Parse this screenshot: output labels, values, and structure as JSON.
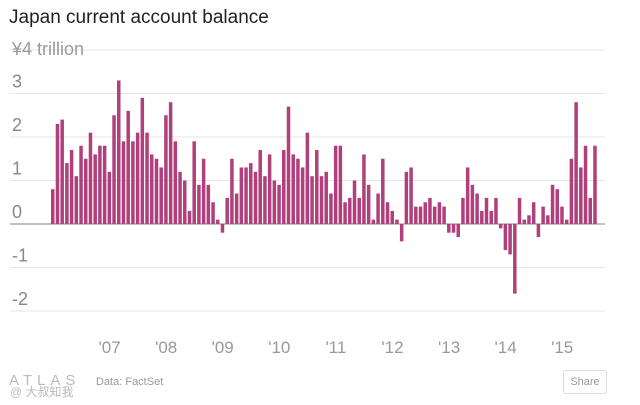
{
  "chart_data": {
    "type": "bar",
    "title": "Japan current account balance",
    "y_unit_label": "¥4 trillion",
    "ylim": [
      -2.3,
      4.2
    ],
    "y_ticks": [
      3,
      2,
      1,
      0,
      -1,
      -2
    ],
    "y_tick_labels": [
      "3",
      "2",
      "1",
      "0",
      "-1",
      "-2"
    ],
    "x_tick_labels": [
      "'07",
      "'08",
      "'09",
      "'10",
      "'11",
      "'12",
      "'13",
      "'14",
      "'15"
    ],
    "bar_color": "#b0407c",
    "gridline_color": "#e6e6e6",
    "zero_line_color": "#9a9a9a",
    "series": [
      {
        "name": "Current account balance",
        "start": "2006-01",
        "values": [
          0.8,
          2.3,
          2.4,
          1.4,
          1.7,
          1.1,
          1.8,
          1.5,
          2.1,
          1.6,
          1.8,
          1.8,
          1.2,
          2.5,
          3.3,
          1.9,
          2.6,
          1.9,
          2.1,
          2.9,
          2.1,
          1.6,
          1.5,
          1.3,
          2.5,
          2.8,
          1.9,
          1.2,
          1.0,
          0.3,
          1.9,
          0.9,
          1.5,
          0.9,
          0.5,
          0.1,
          -0.2,
          0.6,
          1.5,
          0.7,
          1.3,
          1.3,
          1.4,
          1.2,
          1.7,
          1.1,
          1.6,
          1.0,
          0.9,
          1.7,
          2.7,
          1.6,
          1.5,
          1.3,
          2.1,
          1.1,
          1.7,
          1.1,
          1.2,
          0.7,
          1.8,
          1.8,
          0.5,
          0.6,
          1.0,
          0.6,
          1.6,
          0.9,
          0.1,
          0.7,
          1.5,
          0.5,
          0.3,
          0.1,
          -0.4,
          1.2,
          1.3,
          0.4,
          0.4,
          0.5,
          0.6,
          0.4,
          0.5,
          0.4,
          -0.2,
          -0.2,
          -0.3,
          0.6,
          1.3,
          0.9,
          0.7,
          0.3,
          0.6,
          0.3,
          0.6,
          -0.1,
          -0.6,
          -0.7,
          -1.6,
          0.6,
          0.1,
          0.2,
          0.5,
          -0.3,
          0.4,
          0.2,
          0.9,
          0.8,
          0.4,
          0.1,
          1.5,
          2.8,
          1.3,
          1.8,
          0.6,
          1.8
        ]
      }
    ],
    "source": "Data: FactSet",
    "branding": "ATLAS"
  },
  "ui": {
    "share_label": "Share",
    "watermark": "@ 大叔知我"
  }
}
